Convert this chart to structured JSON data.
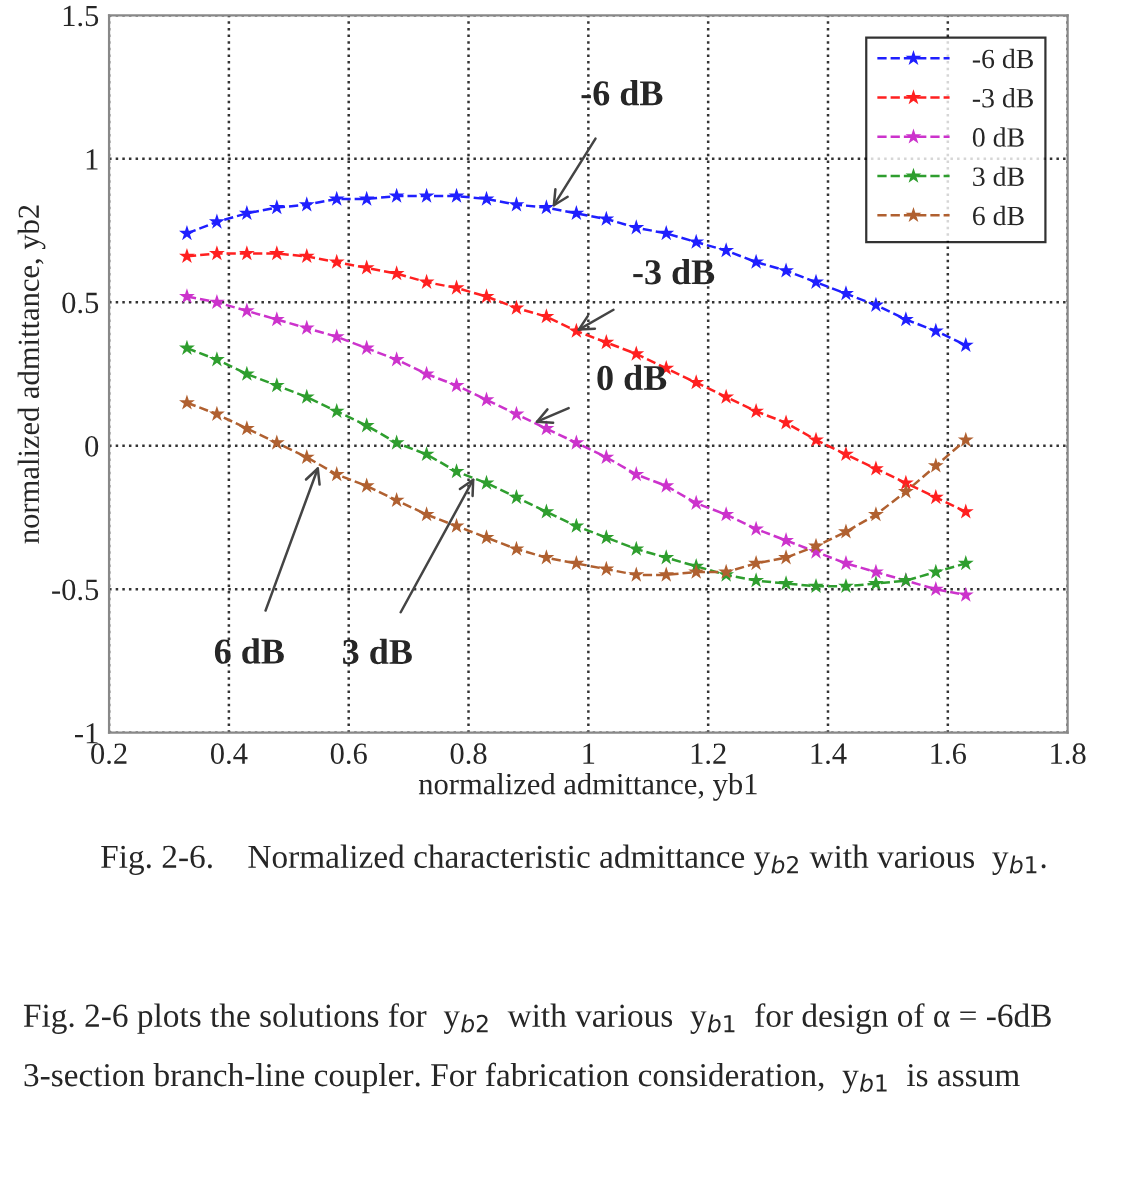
{
  "chart_data": {
    "type": "line",
    "xlabel": "normalized admittance, yb1",
    "ylabel": "normalized admittance, yb2",
    "x": [
      0.33,
      0.38,
      0.43,
      0.48,
      0.53,
      0.58,
      0.63,
      0.68,
      0.73,
      0.78,
      0.83,
      0.88,
      0.93,
      0.98,
      1.03,
      1.08,
      1.13,
      1.18,
      1.23,
      1.28,
      1.33,
      1.38,
      1.43,
      1.48,
      1.53,
      1.58,
      1.63
    ],
    "series": [
      {
        "name": "-6 dB",
        "color": "#1f1fff",
        "values": [
          0.74,
          0.78,
          0.81,
          0.83,
          0.84,
          0.86,
          0.86,
          0.87,
          0.87,
          0.87,
          0.86,
          0.84,
          0.83,
          0.81,
          0.79,
          0.76,
          0.74,
          0.71,
          0.68,
          0.64,
          0.61,
          0.57,
          0.53,
          0.49,
          0.44,
          0.4,
          0.35
        ]
      },
      {
        "name": "-3 dB",
        "color": "#ff2020",
        "values": [
          0.66,
          0.67,
          0.67,
          0.67,
          0.66,
          0.64,
          0.62,
          0.6,
          0.57,
          0.55,
          0.52,
          0.48,
          0.45,
          0.4,
          0.36,
          0.32,
          0.27,
          0.22,
          0.17,
          0.12,
          0.08,
          0.02,
          -0.03,
          -0.08,
          -0.13,
          -0.18,
          -0.23
        ]
      },
      {
        "name": "0 dB",
        "color": "#cc33cc",
        "values": [
          0.52,
          0.5,
          0.47,
          0.44,
          0.41,
          0.38,
          0.34,
          0.3,
          0.25,
          0.21,
          0.16,
          0.11,
          0.06,
          0.01,
          -0.04,
          -0.1,
          -0.14,
          -0.2,
          -0.24,
          -0.29,
          -0.33,
          -0.37,
          -0.41,
          -0.44,
          -0.47,
          -0.5,
          -0.52
        ]
      },
      {
        "name": "3 dB",
        "color": "#2e9e2e",
        "values": [
          0.34,
          0.3,
          0.25,
          0.21,
          0.17,
          0.12,
          0.07,
          0.01,
          -0.03,
          -0.09,
          -0.13,
          -0.18,
          -0.23,
          -0.28,
          -0.32,
          -0.36,
          -0.39,
          -0.42,
          -0.45,
          -0.47,
          -0.48,
          -0.49,
          -0.49,
          -0.48,
          -0.47,
          -0.44,
          -0.41
        ]
      },
      {
        "name": "6 dB",
        "color": "#b06030",
        "values": [
          0.15,
          0.11,
          0.06,
          0.01,
          -0.04,
          -0.1,
          -0.14,
          -0.19,
          -0.24,
          -0.28,
          -0.32,
          -0.36,
          -0.39,
          -0.41,
          -0.43,
          -0.45,
          -0.45,
          -0.44,
          -0.44,
          -0.41,
          -0.39,
          -0.35,
          -0.3,
          -0.24,
          -0.16,
          -0.07,
          0.02
        ]
      }
    ],
    "xlim": [
      0.2,
      1.8
    ],
    "xticks": [
      0.2,
      0.4,
      0.6,
      0.8,
      1,
      1.2,
      1.4,
      1.6,
      1.8
    ],
    "ylim": [
      -1,
      1.5
    ],
    "yticks": [
      -1,
      -0.5,
      0,
      0.5,
      1,
      1.5
    ],
    "grid": true,
    "legend": "top right",
    "marker": "star",
    "line_style": "dashed",
    "annotations": [
      {
        "text": "-6 dB",
        "x": 0.94,
        "y": 0.83
      },
      {
        "text": "-3 dB",
        "x": 0.98,
        "y": 0.4
      },
      {
        "text": "0 dB",
        "x": 0.91,
        "y": 0.08
      },
      {
        "text": "6 dB",
        "x": 0.55,
        "y": -0.07
      },
      {
        "text": "3 dB",
        "x": 0.81,
        "y": -0.11
      },
      "Fig. 2-6.    Normalized characteristic admittance y$_{b2}$ with various  y$_{b1}$.",
      "Fig. 2-6 plots the solutions for  y$_{b2}$  with various  y$_{b1}$  for design of α = -6dB 3-section branch-line coupler. For fabrication consideration,  y$_{b1}$  is assum"
    ]
  }
}
